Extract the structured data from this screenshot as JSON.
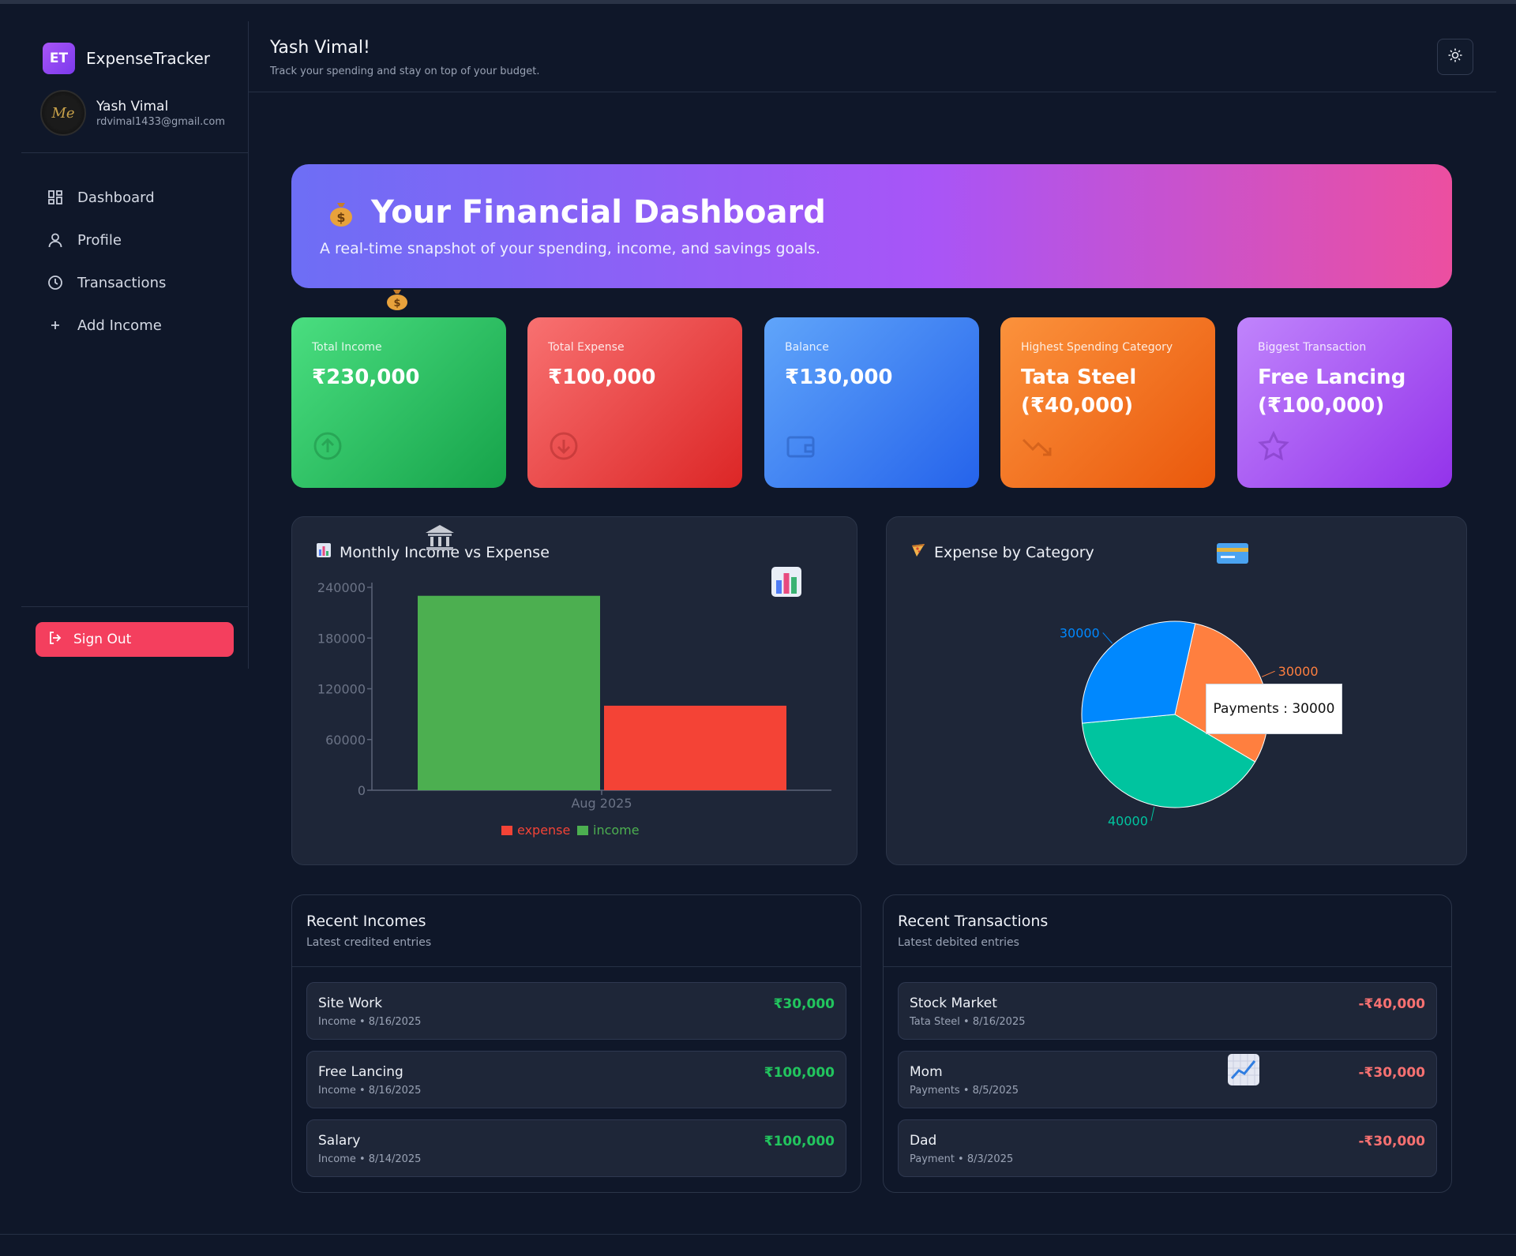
{
  "app": {
    "logo_text": "ET",
    "name": "ExpenseTracker"
  },
  "user": {
    "name": "Yash Vimal",
    "email": "rdvimal1433@gmail.com",
    "avatar_text": "Me"
  },
  "nav": [
    {
      "label": "Dashboard",
      "icon": "dashboard-icon"
    },
    {
      "label": "Profile",
      "icon": "user-icon"
    },
    {
      "label": "Transactions",
      "icon": "clock-icon"
    },
    {
      "label": "Add Income",
      "icon": "plus-icon"
    }
  ],
  "signout": {
    "label": "Sign Out",
    "icon": "logout-icon"
  },
  "header": {
    "title": "Yash Vimal!",
    "subtitle": "Track your spending and stay on top of your budget.",
    "theme_icon": "sun-icon"
  },
  "hero": {
    "title": "Your Financial Dashboard",
    "subtitle": "A real-time snapshot of your spending, income, and savings goals.",
    "emoji": "money-bag-icon"
  },
  "stats": [
    {
      "label": "Total Income",
      "value": "₹230,000",
      "icon": "arrow-up-circle-icon",
      "color_from": "#4ade80",
      "color_to": "#16a34a"
    },
    {
      "label": "Total Expense",
      "value": "₹100,000",
      "icon": "arrow-down-circle-icon",
      "color_from": "#f87171",
      "color_to": "#dc2626"
    },
    {
      "label": "Balance",
      "value": "₹130,000",
      "icon": "wallet-icon",
      "color_from": "#60a5fa",
      "color_to": "#2563eb"
    },
    {
      "label": "Highest Spending Category",
      "value": "Tata Steel (₹40,000)",
      "icon": "trend-down-icon",
      "color_from": "#fb923c",
      "color_to": "#ea580c"
    },
    {
      "label": "Biggest Transaction",
      "value": "Free Lancing (₹100,000)",
      "icon": "star-icon",
      "color_from": "#c084fc",
      "color_to": "#9333ea"
    }
  ],
  "bar_panel": {
    "title": "Monthly Income vs Expense"
  },
  "pie_panel": {
    "title": "Expense by Category",
    "tooltip": "Payments : 30000"
  },
  "chart_data": [
    {
      "type": "bar",
      "categories": [
        "Aug 2025"
      ],
      "series": [
        {
          "name": "expense",
          "values": [
            100000
          ],
          "color": "#f44336"
        },
        {
          "name": "income",
          "values": [
            230000
          ],
          "color": "#4caf50"
        }
      ],
      "y_ticks": [
        "0",
        "60000",
        "120000",
        "180000",
        "240000"
      ],
      "ylim": [
        0,
        240000
      ],
      "legend": "bottom"
    },
    {
      "type": "pie",
      "slices": [
        {
          "label": "30000",
          "value": 30000,
          "color": "#ff7f3f"
        },
        {
          "label": "40000",
          "value": 40000,
          "color": "#00c49f"
        },
        {
          "label": "30000",
          "value": 30000,
          "color": "#0088fe"
        }
      ]
    }
  ],
  "recent_incomes": {
    "title": "Recent Incomes",
    "subtitle": "Latest credited entries",
    "items": [
      {
        "name": "Site Work",
        "meta": "Income • 8/16/2025",
        "amount": "₹30,000"
      },
      {
        "name": "Free Lancing",
        "meta": "Income • 8/16/2025",
        "amount": "₹100,000"
      },
      {
        "name": "Salary",
        "meta": "Income • 8/14/2025",
        "amount": "₹100,000"
      }
    ]
  },
  "recent_transactions": {
    "title": "Recent Transactions",
    "subtitle": "Latest debited entries",
    "items": [
      {
        "name": "Stock Market",
        "meta": "Tata Steel • 8/16/2025",
        "amount": "-₹40,000"
      },
      {
        "name": "Mom",
        "meta": "Payments • 8/5/2025",
        "amount": "-₹30,000"
      },
      {
        "name": "Dad",
        "meta": "Payment • 8/3/2025",
        "amount": "-₹30,000"
      }
    ]
  }
}
